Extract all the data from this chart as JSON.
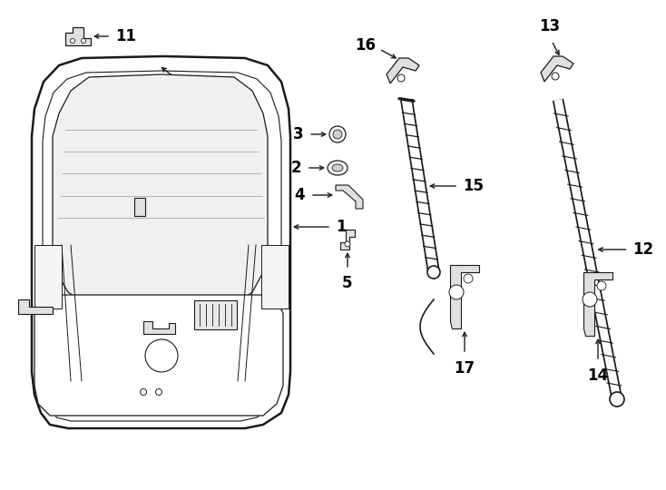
{
  "bg_color": "#ffffff",
  "line_color": "#1a1a1a",
  "text_color": "#000000",
  "figsize": [
    7.34,
    5.4
  ],
  "dpi": 100
}
